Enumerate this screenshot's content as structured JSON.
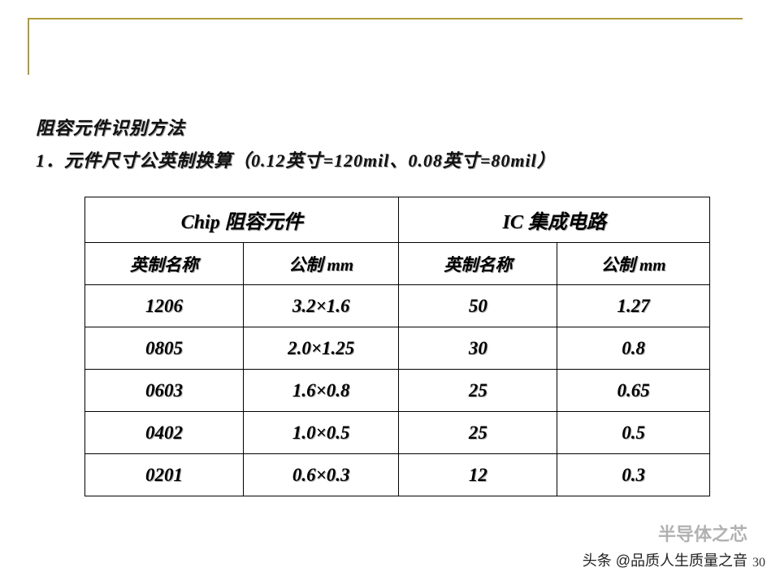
{
  "heading": "阻容元件识别方法",
  "subheading": "1．元件尺寸公英制换算（0.12英寸=120mil、0.08英寸=80mil）",
  "table": {
    "group_headers": [
      "Chip 阻容元件",
      "IC 集成电路"
    ],
    "sub_headers": [
      "英制名称",
      "公制 mm",
      "英制名称",
      "公制 mm"
    ],
    "rows": [
      [
        "1206",
        "3.2×1.6",
        "50",
        "1.27"
      ],
      [
        "0805",
        "2.0×1.25",
        "30",
        "0.8"
      ],
      [
        "0603",
        "1.6×0.8",
        "25",
        "0.65"
      ],
      [
        "0402",
        "1.0×0.5",
        "25",
        "0.5"
      ],
      [
        "0201",
        "0.6×0.3",
        "12",
        "0.3"
      ]
    ]
  },
  "watermark": "半导体之芯",
  "footer": "头条 @品质人生质量之音",
  "page": "30"
}
